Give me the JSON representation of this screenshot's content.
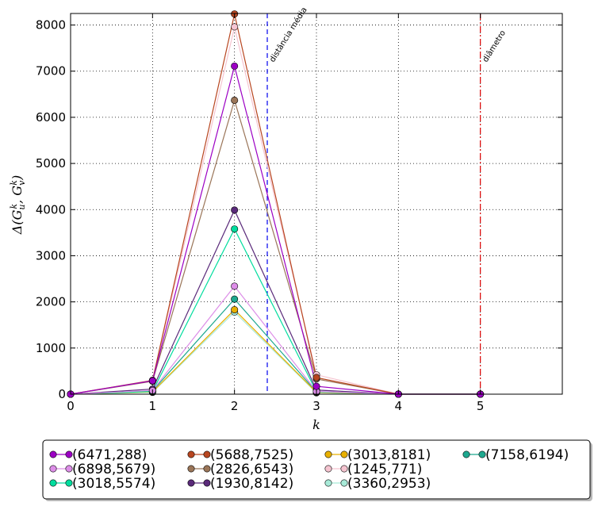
{
  "chart_data": {
    "type": "line",
    "title": "",
    "xlabel": "k",
    "ylabel": "Δ(G_u^k, G_v^k)",
    "xlim": [
      0,
      6
    ],
    "ylim": [
      0,
      8250
    ],
    "xticks": [
      0,
      1,
      2,
      3,
      4,
      5
    ],
    "yticks": [
      0,
      1000,
      2000,
      3000,
      4000,
      5000,
      6000,
      7000,
      8000
    ],
    "grid": true,
    "x": [
      0,
      1,
      2,
      3,
      4,
      5
    ],
    "legend_position": "below",
    "series": [
      {
        "name": "(6471,288)",
        "color": "#9c00c4",
        "values": [
          0,
          290,
          7110,
          170,
          0,
          0
        ]
      },
      {
        "name": "(6898,5679)",
        "color": "#dd8ee8",
        "values": [
          0,
          80,
          2340,
          60,
          0,
          0
        ]
      },
      {
        "name": "(3018,5574)",
        "color": "#00dd9e",
        "values": [
          0,
          60,
          3580,
          50,
          0,
          0
        ]
      },
      {
        "name": "(5688,7525)",
        "color": "#b84620",
        "values": [
          0,
          300,
          8240,
          360,
          0,
          0
        ]
      },
      {
        "name": "(2826,6543)",
        "color": "#9a7558",
        "values": [
          0,
          280,
          6370,
          330,
          0,
          0
        ]
      },
      {
        "name": "(1930,8142)",
        "color": "#5a2a7a",
        "values": [
          0,
          110,
          3990,
          90,
          0,
          0
        ]
      },
      {
        "name": "(3013,8181)",
        "color": "#e8b000",
        "values": [
          0,
          50,
          1830,
          40,
          0,
          0
        ]
      },
      {
        "name": "(1245,771)",
        "color": "#f5c4d0",
        "values": [
          0,
          290,
          7960,
          420,
          0,
          0
        ]
      },
      {
        "name": "(3360,2953)",
        "color": "#a8ead8",
        "values": [
          0,
          40,
          1780,
          30,
          0,
          0
        ]
      },
      {
        "name": "(7158,6194)",
        "color": "#1fa88f",
        "values": [
          0,
          70,
          2060,
          50,
          0,
          0
        ]
      }
    ],
    "vlines": [
      {
        "x": 2.4,
        "label": "distância média",
        "color": "#0000ee",
        "style": "dashed"
      },
      {
        "x": 5,
        "label": "diâmetro",
        "color": "#dd0000",
        "style": "dashdot"
      }
    ]
  }
}
